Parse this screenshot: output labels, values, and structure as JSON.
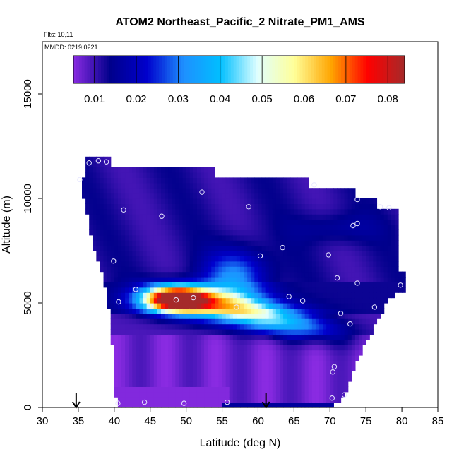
{
  "chart_data": {
    "type": "heatmap",
    "title": "ATOM2 Northeast_Pacific_2 Nitrate_PM1_AMS",
    "flights_label": "Flts: 10,11",
    "dates_label": "MMDD: 0219,0221",
    "xlabel": "Latitude (deg N)",
    "ylabel": "Altitude (m)",
    "xlim": [
      30,
      85
    ],
    "ylim": [
      0,
      17500
    ],
    "x_ticks": [
      30,
      35,
      40,
      45,
      50,
      55,
      60,
      65,
      70,
      75,
      80,
      85
    ],
    "y_ticks": [
      0,
      5000,
      10000,
      15000
    ],
    "colorbar": {
      "range": [
        0.005,
        0.084
      ],
      "ticks": [
        0.01,
        0.02,
        0.03,
        0.04,
        0.05,
        0.06,
        0.07,
        0.08
      ],
      "tick_labels": [
        "0.01",
        "0.02",
        "0.03",
        "0.04",
        "0.05",
        "0.06",
        "0.07",
        "0.08"
      ],
      "colors": [
        "#8a2be2",
        "#00008b",
        "#0000cd",
        "#1e90ff",
        "#00bfff",
        "#e0ffff",
        "#ffff99",
        "#ffa500",
        "#ff0000",
        "#a52a2a"
      ]
    },
    "sample_points": [
      {
        "lat": 35.2,
        "alt": 10900
      },
      {
        "lat": 36.5,
        "alt": 11700
      },
      {
        "lat": 37.8,
        "alt": 11800
      },
      {
        "lat": 38.9,
        "alt": 11750
      },
      {
        "lat": 41.3,
        "alt": 9450
      },
      {
        "lat": 46.6,
        "alt": 9150
      },
      {
        "lat": 52.2,
        "alt": 10300
      },
      {
        "lat": 58.7,
        "alt": 9600
      },
      {
        "lat": 67.8,
        "alt": 10650
      },
      {
        "lat": 73.8,
        "alt": 9950
      },
      {
        "lat": 77.0,
        "alt": 9600
      },
      {
        "lat": 78.2,
        "alt": 9550
      },
      {
        "lat": 73.2,
        "alt": 8700
      },
      {
        "lat": 73.8,
        "alt": 8800
      },
      {
        "lat": 63.4,
        "alt": 7650
      },
      {
        "lat": 60.3,
        "alt": 7250
      },
      {
        "lat": 69.8,
        "alt": 7300
      },
      {
        "lat": 39.9,
        "alt": 7000
      },
      {
        "lat": 71.0,
        "alt": 6200
      },
      {
        "lat": 73.8,
        "alt": 5950
      },
      {
        "lat": 79.8,
        "alt": 5850
      },
      {
        "lat": 43.0,
        "alt": 5650
      },
      {
        "lat": 40.6,
        "alt": 5050
      },
      {
        "lat": 45.0,
        "alt": 4850
      },
      {
        "lat": 48.6,
        "alt": 5150
      },
      {
        "lat": 51.0,
        "alt": 5250
      },
      {
        "lat": 57.0,
        "alt": 4800
      },
      {
        "lat": 64.3,
        "alt": 5300
      },
      {
        "lat": 66.2,
        "alt": 5100
      },
      {
        "lat": 71.5,
        "alt": 4500
      },
      {
        "lat": 72.8,
        "alt": 4000
      },
      {
        "lat": 76.2,
        "alt": 4800
      },
      {
        "lat": 70.6,
        "alt": 1950
      },
      {
        "lat": 70.4,
        "alt": 1700
      },
      {
        "lat": 72.0,
        "alt": 600
      },
      {
        "lat": 70.3,
        "alt": 450
      },
      {
        "lat": 40.5,
        "alt": 200
      },
      {
        "lat": 44.2,
        "alt": 250
      },
      {
        "lat": 49.7,
        "alt": 200
      },
      {
        "lat": 55.7,
        "alt": 250
      }
    ],
    "flight_markers": [
      34.7,
      61.1
    ]
  }
}
